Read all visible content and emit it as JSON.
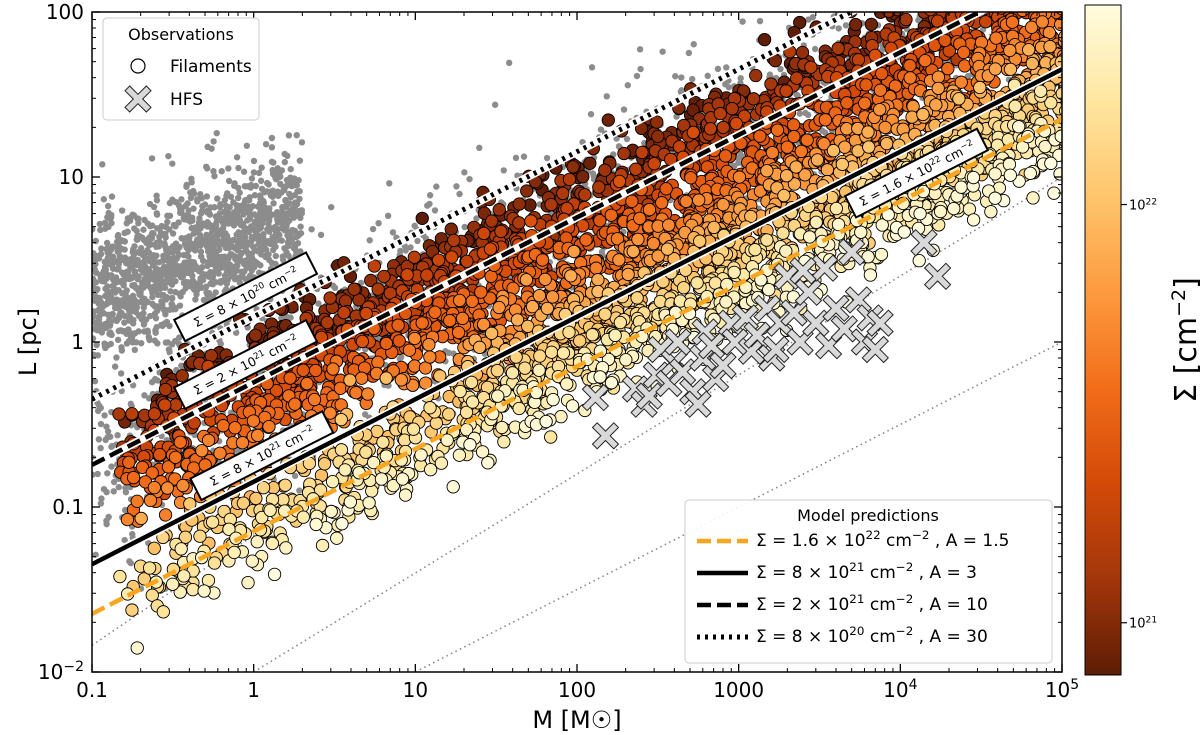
{
  "chart_data": {
    "type": "scatter",
    "title": "",
    "xlabel": "M [M☉]",
    "ylabel": "L [pc]",
    "xscale": "log",
    "yscale": "log",
    "xlim": [
      0.1,
      100000
    ],
    "ylim": [
      0.01,
      100
    ],
    "x_ticks": [
      {
        "value": 0.1,
        "label": "0.1"
      },
      {
        "value": 1,
        "label": "1"
      },
      {
        "value": 10,
        "label": "10"
      },
      {
        "value": 100,
        "label": "100"
      },
      {
        "value": 1000,
        "label": "1000"
      },
      {
        "value": 10000,
        "label": "10",
        "exp": "4"
      },
      {
        "value": 100000,
        "label": "10",
        "exp": "5"
      }
    ],
    "y_ticks": [
      {
        "value": 0.01,
        "label": "10",
        "exp": "−2"
      },
      {
        "value": 0.1,
        "label": "0.1"
      },
      {
        "value": 1,
        "label": "1"
      },
      {
        "value": 10,
        "label": "10"
      },
      {
        "value": 100,
        "label": "100"
      }
    ],
    "colorbar": {
      "label": "Σ [cm",
      "label_exp": "−2",
      "label_close": "]",
      "range": [
        7.5e+20,
        3e+22
      ],
      "ticks": [
        {
          "value": 1e+21,
          "label": "10",
          "exp": "21"
        },
        {
          "value": 1e+22,
          "label": "10",
          "exp": "22"
        }
      ],
      "cmap": [
        "#fffcdf",
        "#fee6a0",
        "#fec56c",
        "#fd9a3f",
        "#f26d1a",
        "#d34a08",
        "#a3360b",
        "#5e1d06"
      ]
    },
    "legend_observations": {
      "title": "Observations",
      "entries": [
        {
          "label": "Filaments",
          "marker": "circle"
        },
        {
          "label": "HFS",
          "marker": "cross"
        }
      ]
    },
    "legend_models": {
      "title": "Model predictions",
      "entries": [
        {
          "label": "Σ = 1.6 × 10",
          "exp": "22",
          "unit": " cm",
          "unit_exp": "−2",
          "param": " , A = 1.5",
          "style": "dashed",
          "color": "#f8a51f"
        },
        {
          "label": "Σ = 8 × 10",
          "exp": "21",
          "unit": " cm",
          "unit_exp": "−2",
          "param": " , A = 3",
          "style": "solid",
          "color": "#000000"
        },
        {
          "label": "Σ = 2 × 10",
          "exp": "21",
          "unit": " cm",
          "unit_exp": "−2",
          "param": " , A = 10",
          "style": "dashed",
          "color": "#000000"
        },
        {
          "label": "Σ = 8 × 10",
          "exp": "20",
          "unit": " cm",
          "unit_exp": "−2",
          "param": " , A = 30",
          "style": "dotted",
          "color": "#000000"
        }
      ]
    },
    "model_lines": [
      {
        "name": "sigma-1.6e22",
        "sigma": 1.6e+22,
        "A": 1.5,
        "style": "dashed",
        "color": "#f8a51f",
        "x": [
          0.1,
          100000
        ],
        "y": [
          0.0225,
          22.5
        ],
        "label": "Σ = 1.6 × 10",
        "label_exp": "22",
        "label_unit": " cm",
        "label_unit_exp": "−2"
      },
      {
        "name": "sigma-8e21",
        "sigma": 8e+21,
        "A": 3,
        "style": "solid",
        "color": "#000000",
        "x": [
          0.1,
          100000
        ],
        "y": [
          0.045,
          45
        ],
        "label": "Σ = 8 × 10",
        "label_exp": "21",
        "label_unit": " cm",
        "label_unit_exp": "−2"
      },
      {
        "name": "sigma-2e21",
        "sigma": 2e+21,
        "A": 10,
        "style": "dashed",
        "color": "#000000",
        "x": [
          0.1,
          100000
        ],
        "y": [
          0.18,
          180
        ],
        "label": "Σ = 2 × 10",
        "label_exp": "21",
        "label_unit": " cm",
        "label_unit_exp": "−2"
      },
      {
        "name": "sigma-8e20",
        "sigma": 8e+20,
        "A": 30,
        "style": "dotted",
        "color": "#000000",
        "x": [
          0.1,
          100000
        ],
        "y": [
          0.45,
          450
        ],
        "label": "Σ = 8 × 10",
        "label_exp": "20",
        "label_unit": " cm",
        "label_unit_exp": "−2"
      }
    ],
    "reference_lines": [
      {
        "style": "dotted",
        "color": "#888888",
        "x": [
          0.1,
          100000
        ],
        "y": [
          0.0145,
          145
        ]
      },
      {
        "style": "dotted",
        "color": "#888888",
        "x": [
          1,
          100000
        ],
        "y": [
          0.01,
          10
        ]
      },
      {
        "style": "dotted",
        "color": "#888888",
        "x": [
          10,
          100000
        ],
        "y": [
          0.01,
          1
        ]
      }
    ],
    "grey_points": {
      "description_none": true,
      "color": "#8c8c8c",
      "clusters": [
        {
          "logM": [
            -1,
            0.3
          ],
          "logL": [
            0.05,
            0.8
          ],
          "n": 1400
        },
        {
          "logM": [
            0,
            5
          ],
          "logL_offset": [
            -0.55,
            0.45
          ],
          "n": 1800
        }
      ]
    },
    "filament_points": {
      "n": 4200,
      "logM": [
        -0.85,
        5
      ],
      "edgecolor": "#000000"
    },
    "hfs_points": [
      [
        130,
        0.46
      ],
      [
        150,
        0.27
      ],
      [
        230,
        0.52
      ],
      [
        260,
        0.42
      ],
      [
        280,
        0.47
      ],
      [
        310,
        0.63
      ],
      [
        330,
        0.9
      ],
      [
        370,
        0.56
      ],
      [
        400,
        0.75
      ],
      [
        420,
        1.0
      ],
      [
        450,
        0.66
      ],
      [
        520,
        0.5
      ],
      [
        560,
        0.42
      ],
      [
        600,
        0.8
      ],
      [
        620,
        1.15
      ],
      [
        680,
        0.95
      ],
      [
        720,
        0.6
      ],
      [
        800,
        0.72
      ],
      [
        900,
        1.3
      ],
      [
        950,
        1.0
      ],
      [
        1100,
        1.4
      ],
      [
        1200,
        0.88
      ],
      [
        1300,
        1.1
      ],
      [
        1500,
        1.6
      ],
      [
        1600,
        0.8
      ],
      [
        1800,
        1.3
      ],
      [
        2000,
        2.5
      ],
      [
        2200,
        1.5
      ],
      [
        2400,
        1.0
      ],
      [
        2700,
        2.0
      ],
      [
        3000,
        1.3
      ],
      [
        3400,
        2.8
      ],
      [
        3600,
        0.95
      ],
      [
        4000,
        1.6
      ],
      [
        4500,
        1.2
      ],
      [
        5000,
        3.5
      ],
      [
        5500,
        1.8
      ],
      [
        6000,
        1.0
      ],
      [
        6500,
        1.4
      ],
      [
        7000,
        0.9
      ],
      [
        7500,
        1.3
      ],
      [
        14000,
        4.0
      ],
      [
        17000,
        2.5
      ],
      [
        2500,
        2.7
      ],
      [
        1700,
        0.9
      ]
    ]
  }
}
